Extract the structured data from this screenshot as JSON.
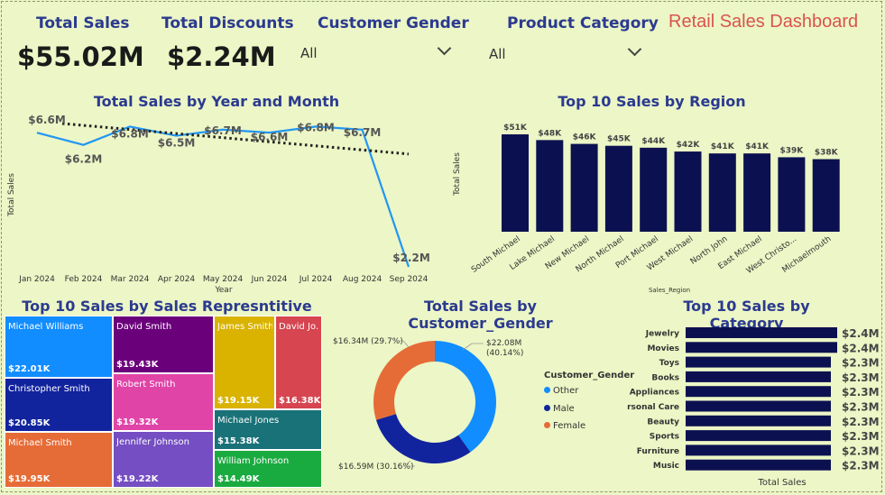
{
  "kpis": {
    "total_sales_label": "Total Sales",
    "total_sales_value": "$55.02M",
    "total_discounts_label": "Total Discounts",
    "total_discounts_value": "$2.24M"
  },
  "slicers": {
    "gender_label": "Customer Gender",
    "gender_value": "All",
    "category_label": "Product Category",
    "category_value": "All"
  },
  "dashboard_title": "Retail Sales Dashboard",
  "chart_data": [
    {
      "type": "line",
      "title": "Total Sales by Year and Month",
      "xlabel": "Year",
      "ylabel": "Total Sales",
      "categories": [
        "Jan 2024",
        "Feb 2024",
        "Mar 2024",
        "Apr 2024",
        "May 2024",
        "Jun 2024",
        "Jul 2024",
        "Aug 2024",
        "Sep 2024"
      ],
      "values": [
        6.6,
        6.2,
        6.8,
        6.5,
        6.7,
        6.6,
        6.8,
        6.7,
        2.2
      ],
      "data_labels": [
        "$6.6M",
        "$6.2M",
        "$6.8M",
        "$6.5M",
        "$6.7M",
        "$6.6M",
        "$6.8M",
        "$6.7M",
        "$2.2M"
      ],
      "ylim": [
        2.2,
        6.9
      ],
      "trendline": [
        6.9,
        5.9
      ],
      "colors": {
        "line": "#2196f3",
        "trend": "#222222"
      }
    },
    {
      "type": "bar",
      "title": "Top 10 Sales by Region",
      "xlabel": "Sales_Region",
      "ylabel": "Total Sales",
      "categories": [
        "South Michael",
        "Lake Michael",
        "New Michael",
        "North Michael",
        "Port Michael",
        "West Michael",
        "North John",
        "East Michael",
        "West Christo...",
        "Michaelmouth"
      ],
      "values": [
        51,
        48,
        46,
        45,
        44,
        42,
        41,
        41,
        39,
        38
      ],
      "data_labels": [
        "$51K",
        "$48K",
        "$46K",
        "$45K",
        "$44K",
        "$42K",
        "$41K",
        "$41K",
        "$39K",
        "$38K"
      ],
      "ylim": [
        0,
        51
      ],
      "colors": {
        "bar": "#0b1150"
      }
    },
    {
      "type": "treemap",
      "title": "Top 10 Sales by Sales Represntitive",
      "items": [
        {
          "name": "Michael Williams",
          "label": "$22.01K",
          "value": 22.01,
          "color": "#118dff"
        },
        {
          "name": "Christopher Smith",
          "label": "$20.85K",
          "value": 20.85,
          "color": "#12239e"
        },
        {
          "name": "Michael Smith",
          "label": "$19.95K",
          "value": 19.95,
          "color": "#e66c37"
        },
        {
          "name": "David Smith",
          "label": "$19.43K",
          "value": 19.43,
          "color": "#6b007b"
        },
        {
          "name": "Robert Smith",
          "label": "$19.32K",
          "value": 19.32,
          "color": "#e044a7"
        },
        {
          "name": "Jennifer Johnson",
          "label": "$19.22K",
          "value": 19.22,
          "color": "#744ec2"
        },
        {
          "name": "James Smith",
          "label": "$19.15K",
          "value": 19.15,
          "color": "#d9b300"
        },
        {
          "name": "David Jo...",
          "label": "$16.38K",
          "value": 16.38,
          "color": "#d64550"
        },
        {
          "name": "Michael Jones",
          "label": "$15.38K",
          "value": 15.38,
          "color": "#197278"
        },
        {
          "name": "William Johnson",
          "label": "$14.49K",
          "value": 14.49,
          "color": "#1aab40"
        }
      ]
    },
    {
      "type": "pie",
      "title": "Total Sales by Customer_Gender",
      "legend_title": "Customer_Gender",
      "slices": [
        {
          "name": "Other",
          "value": 22.08,
          "label": "$22.08M (40.14%)",
          "color": "#118dff"
        },
        {
          "name": "Male",
          "value": 16.59,
          "label": "$16.59M (30.16%)",
          "color": "#12239e"
        },
        {
          "name": "Female",
          "value": 16.34,
          "label": "$16.34M (29.7%)",
          "color": "#e66c37"
        }
      ]
    },
    {
      "type": "bar",
      "orientation": "horizontal",
      "title": "Top 10 Sales by Category",
      "xlabel": "Total Sales",
      "categories": [
        "Jewelry",
        "Movies",
        "Toys",
        "Books",
        "Appliances",
        "rsonal Care",
        "Beauty",
        "Sports",
        "Furniture",
        "Music"
      ],
      "values": [
        2.4,
        2.4,
        2.3,
        2.3,
        2.3,
        2.3,
        2.3,
        2.3,
        2.3,
        2.3
      ],
      "data_labels": [
        "$2.4M",
        "$2.4M",
        "$2.3M",
        "$2.3M",
        "$2.3M",
        "$2.3M",
        "$2.3M",
        "$2.3M",
        "$2.3M",
        "$2.3M"
      ],
      "colors": {
        "bar": "#0b1150"
      }
    }
  ]
}
